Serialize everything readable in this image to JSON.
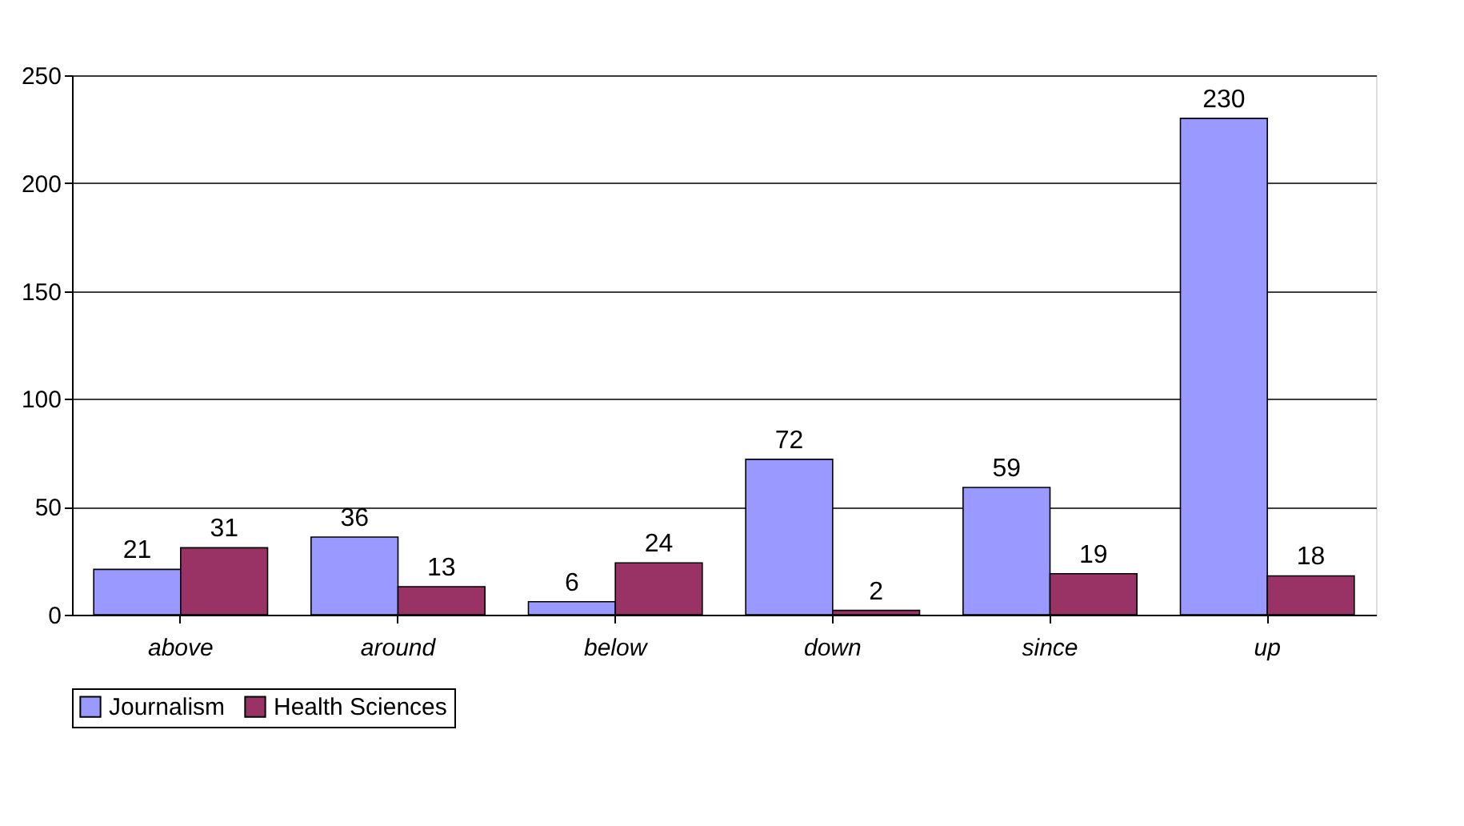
{
  "chart_data": {
    "type": "bar",
    "categories": [
      "above",
      "around",
      "below",
      "down",
      "since",
      "up"
    ],
    "series": [
      {
        "name": "Journalism",
        "color": "#9999ff",
        "values": [
          21,
          36,
          6,
          72,
          59,
          230
        ]
      },
      {
        "name": "Health Sciences",
        "color": "#993366",
        "values": [
          31,
          13,
          24,
          2,
          19,
          18
        ]
      }
    ],
    "ylim": [
      0,
      250
    ],
    "yticks": [
      0,
      50,
      100,
      150,
      200,
      250
    ],
    "grid": "y",
    "legend": "bottom",
    "data_labels": true
  }
}
